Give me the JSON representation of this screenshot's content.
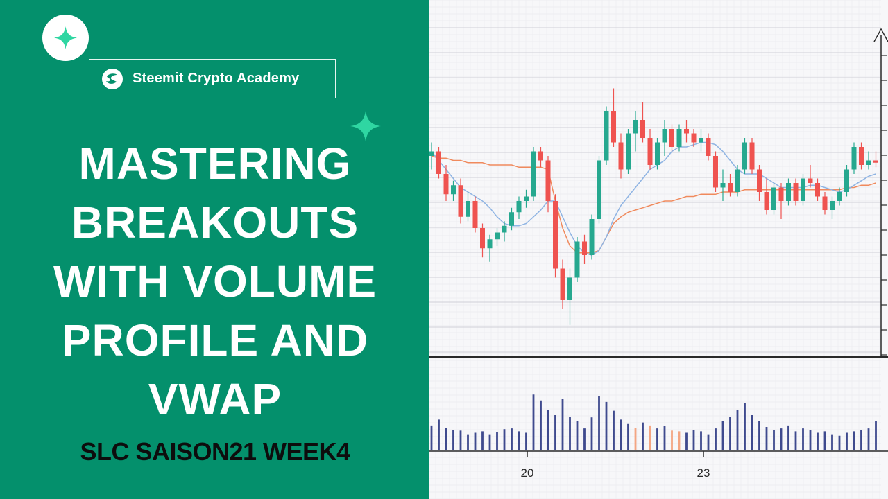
{
  "brand": {
    "logo_icon": "sparkle-icon",
    "badge_icon": "steemit-logo-icon",
    "badge_label": "Steemit Crypto Academy",
    "accent_color": "#04906c",
    "sparkle_color": "#2fd6a2"
  },
  "title": {
    "lines": [
      "MASTERING",
      "BREAKOUTS",
      "WITH VOLUME",
      "PROFILE AND",
      "VWAP"
    ]
  },
  "subtitle": "SLC SAISON21 WEEK4",
  "chart_data": {
    "type": "candlestick",
    "x_tick_labels": [
      "20",
      "23"
    ],
    "y_range": [
      0,
      100
    ],
    "grid": true,
    "colors": {
      "up": "#26a88f",
      "down": "#ef5350",
      "vwap": "#f08a5d",
      "ma": "#8fb4e3",
      "volume": "#3f4a8e",
      "volume_alt": "#f4a582"
    },
    "candles": [
      {
        "o": 60,
        "h": 66,
        "l": 54,
        "c": 62
      },
      {
        "o": 62,
        "h": 64,
        "l": 50,
        "c": 52
      },
      {
        "o": 52,
        "h": 56,
        "l": 40,
        "c": 43
      },
      {
        "o": 43,
        "h": 49,
        "l": 40,
        "c": 47
      },
      {
        "o": 47,
        "h": 50,
        "l": 30,
        "c": 33
      },
      {
        "o": 33,
        "h": 44,
        "l": 31,
        "c": 40
      },
      {
        "o": 40,
        "h": 42,
        "l": 26,
        "c": 28
      },
      {
        "o": 28,
        "h": 30,
        "l": 15,
        "c": 19
      },
      {
        "o": 19,
        "h": 25,
        "l": 13,
        "c": 23
      },
      {
        "o": 23,
        "h": 28,
        "l": 20,
        "c": 26
      },
      {
        "o": 26,
        "h": 31,
        "l": 22,
        "c": 29
      },
      {
        "o": 29,
        "h": 37,
        "l": 27,
        "c": 35
      },
      {
        "o": 35,
        "h": 42,
        "l": 32,
        "c": 40
      },
      {
        "o": 40,
        "h": 45,
        "l": 37,
        "c": 42
      },
      {
        "o": 42,
        "h": 64,
        "l": 40,
        "c": 62
      },
      {
        "o": 62,
        "h": 64,
        "l": 55,
        "c": 58
      },
      {
        "o": 58,
        "h": 60,
        "l": 35,
        "c": 40
      },
      {
        "o": 40,
        "h": 43,
        "l": 6,
        "c": 10
      },
      {
        "o": 10,
        "h": 14,
        "l": -8,
        "c": -4
      },
      {
        "o": -4,
        "h": 10,
        "l": -15,
        "c": 6
      },
      {
        "o": 6,
        "h": 24,
        "l": 4,
        "c": 22
      },
      {
        "o": 22,
        "h": 25,
        "l": 12,
        "c": 16
      },
      {
        "o": 16,
        "h": 34,
        "l": 14,
        "c": 32
      },
      {
        "o": 32,
        "h": 60,
        "l": 30,
        "c": 58
      },
      {
        "o": 58,
        "h": 82,
        "l": 56,
        "c": 80
      },
      {
        "o": 80,
        "h": 90,
        "l": 64,
        "c": 66
      },
      {
        "o": 66,
        "h": 70,
        "l": 50,
        "c": 54
      },
      {
        "o": 54,
        "h": 72,
        "l": 52,
        "c": 70
      },
      {
        "o": 70,
        "h": 80,
        "l": 62,
        "c": 76
      },
      {
        "o": 76,
        "h": 84,
        "l": 66,
        "c": 68
      },
      {
        "o": 68,
        "h": 72,
        "l": 54,
        "c": 56
      },
      {
        "o": 56,
        "h": 68,
        "l": 54,
        "c": 66
      },
      {
        "o": 66,
        "h": 76,
        "l": 60,
        "c": 72
      },
      {
        "o": 72,
        "h": 74,
        "l": 62,
        "c": 64
      },
      {
        "o": 64,
        "h": 74,
        "l": 62,
        "c": 72
      },
      {
        "o": 72,
        "h": 76,
        "l": 66,
        "c": 70
      },
      {
        "o": 70,
        "h": 72,
        "l": 64,
        "c": 66
      },
      {
        "o": 66,
        "h": 72,
        "l": 62,
        "c": 68
      },
      {
        "o": 68,
        "h": 70,
        "l": 58,
        "c": 60
      },
      {
        "o": 60,
        "h": 62,
        "l": 44,
        "c": 46
      },
      {
        "o": 46,
        "h": 54,
        "l": 40,
        "c": 48
      },
      {
        "o": 48,
        "h": 52,
        "l": 42,
        "c": 44
      },
      {
        "o": 44,
        "h": 56,
        "l": 42,
        "c": 54
      },
      {
        "o": 54,
        "h": 68,
        "l": 52,
        "c": 66
      },
      {
        "o": 66,
        "h": 68,
        "l": 52,
        "c": 54
      },
      {
        "o": 54,
        "h": 56,
        "l": 40,
        "c": 44
      },
      {
        "o": 44,
        "h": 50,
        "l": 34,
        "c": 36
      },
      {
        "o": 36,
        "h": 48,
        "l": 34,
        "c": 46
      },
      {
        "o": 46,
        "h": 48,
        "l": 32,
        "c": 40
      },
      {
        "o": 40,
        "h": 50,
        "l": 38,
        "c": 48
      },
      {
        "o": 48,
        "h": 50,
        "l": 38,
        "c": 40
      },
      {
        "o": 40,
        "h": 52,
        "l": 38,
        "c": 50
      },
      {
        "o": 50,
        "h": 56,
        "l": 46,
        "c": 48
      },
      {
        "o": 48,
        "h": 50,
        "l": 40,
        "c": 42
      },
      {
        "o": 42,
        "h": 44,
        "l": 34,
        "c": 36
      },
      {
        "o": 36,
        "h": 42,
        "l": 32,
        "c": 40
      },
      {
        "o": 40,
        "h": 46,
        "l": 38,
        "c": 44
      },
      {
        "o": 44,
        "h": 56,
        "l": 42,
        "c": 54
      },
      {
        "o": 54,
        "h": 66,
        "l": 52,
        "c": 64
      },
      {
        "o": 64,
        "h": 66,
        "l": 54,
        "c": 56
      },
      {
        "o": 56,
        "h": 62,
        "l": 54,
        "c": 58
      },
      {
        "o": 58,
        "h": 62,
        "l": 55,
        "c": 57
      }
    ],
    "vwap": [
      60,
      59,
      59,
      58,
      58,
      57,
      57,
      57,
      56,
      56,
      56,
      56,
      55,
      55,
      55,
      55,
      54,
      40,
      28,
      20,
      17,
      17,
      17,
      18,
      24,
      30,
      33,
      35,
      36,
      37,
      38,
      39,
      40,
      40,
      41,
      42,
      42,
      43,
      43,
      43,
      44,
      44,
      44,
      45,
      45,
      45,
      45,
      45,
      45,
      45,
      45,
      45,
      45,
      45,
      45,
      45,
      45,
      46,
      46,
      47,
      47,
      48
    ],
    "ma": [
      62,
      58,
      54,
      50,
      46,
      44,
      42,
      40,
      37,
      33,
      30,
      29,
      29,
      30,
      33,
      36,
      40,
      40,
      33,
      26,
      20,
      17,
      16,
      18,
      24,
      32,
      38,
      42,
      46,
      50,
      54,
      56,
      58,
      62,
      64,
      64,
      65,
      66,
      66,
      65,
      62,
      58,
      54,
      52,
      52,
      52,
      50,
      48,
      46,
      46,
      46,
      46,
      47,
      47,
      46,
      45,
      44,
      45,
      47,
      49,
      51,
      52
    ],
    "volume": [
      34,
      42,
      31,
      28,
      27,
      22,
      24,
      26,
      22,
      25,
      29,
      30,
      26,
      24,
      76,
      68,
      55,
      48,
      70,
      46,
      40,
      30,
      45,
      74,
      66,
      54,
      42,
      36,
      31,
      38,
      34,
      30,
      33,
      27,
      26,
      24,
      28,
      26,
      22,
      30,
      40,
      46,
      55,
      64,
      48,
      40,
      32,
      28,
      30,
      34,
      26,
      30,
      28,
      24,
      26,
      22,
      20,
      24,
      26,
      28,
      30,
      40
    ]
  }
}
